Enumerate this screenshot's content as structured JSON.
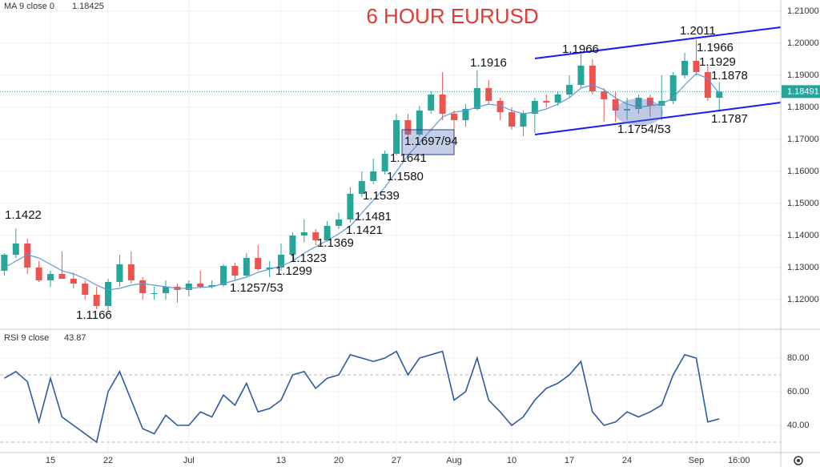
{
  "chart_data": [
    {
      "type": "candlestick",
      "title": "6 HOUR EURUSD",
      "title_color": "#e53935",
      "up_color": "#26a69a",
      "down_color": "#ef5350",
      "open": [
        1.129,
        1.134,
        1.1375,
        1.13,
        1.126,
        1.128,
        1.1265,
        1.125,
        1.1215,
        1.118,
        1.1255,
        1.131,
        1.126,
        1.122,
        1.122,
        1.124,
        1.123,
        1.125,
        1.124,
        1.1245,
        1.1305,
        1.1275,
        1.133,
        1.1295,
        1.13,
        1.134,
        1.14,
        1.141,
        1.1385,
        1.143,
        1.145,
        1.153,
        1.157,
        1.16,
        1.1655,
        1.176,
        1.1715,
        1.179,
        1.184,
        1.178,
        1.176,
        1.1795,
        1.186,
        1.182,
        1.1785,
        1.174,
        1.178,
        1.182,
        1.1815,
        1.184,
        1.187,
        1.193,
        1.185,
        1.1825,
        1.179,
        1.1795,
        1.183,
        1.1805,
        1.182,
        1.19,
        1.1945,
        1.191,
        1.183
      ],
      "high": [
        1.1345,
        1.1422,
        1.139,
        1.132,
        1.129,
        1.135,
        1.1285,
        1.126,
        1.124,
        1.1265,
        1.134,
        1.135,
        1.127,
        1.124,
        1.126,
        1.125,
        1.126,
        1.129,
        1.126,
        1.131,
        1.1315,
        1.1345,
        1.137,
        1.132,
        1.1375,
        1.141,
        1.145,
        1.142,
        1.1445,
        1.147,
        1.155,
        1.16,
        1.164,
        1.1665,
        1.178,
        1.178,
        1.1805,
        1.185,
        1.191,
        1.179,
        1.181,
        1.1916,
        1.1885,
        1.183,
        1.18,
        1.179,
        1.183,
        1.184,
        1.185,
        1.19,
        1.1966,
        1.195,
        1.186,
        1.185,
        1.183,
        1.184,
        1.184,
        1.19,
        1.191,
        1.197,
        1.2011,
        1.1929,
        1.1878
      ],
      "low": [
        1.1275,
        1.133,
        1.128,
        1.1255,
        1.124,
        1.1265,
        1.1235,
        1.12,
        1.117,
        1.1166,
        1.124,
        1.125,
        1.12,
        1.12,
        1.12,
        1.119,
        1.121,
        1.1235,
        1.1235,
        1.124,
        1.126,
        1.127,
        1.129,
        1.127,
        1.129,
        1.132,
        1.138,
        1.137,
        1.138,
        1.142,
        1.144,
        1.152,
        1.156,
        1.159,
        1.165,
        1.1697,
        1.171,
        1.178,
        1.176,
        1.17,
        1.174,
        1.179,
        1.181,
        1.176,
        1.173,
        1.171,
        1.172,
        1.18,
        1.1805,
        1.183,
        1.186,
        1.184,
        1.1755,
        1.1755,
        1.176,
        1.178,
        1.177,
        1.176,
        1.181,
        1.189,
        1.19,
        1.182,
        1.1787
      ],
      "close": [
        1.134,
        1.1375,
        1.13,
        1.126,
        1.128,
        1.1265,
        1.125,
        1.1215,
        1.118,
        1.1255,
        1.131,
        1.126,
        1.122,
        1.122,
        1.124,
        1.123,
        1.125,
        1.124,
        1.1245,
        1.1305,
        1.1275,
        1.133,
        1.1295,
        1.13,
        1.134,
        1.14,
        1.141,
        1.1385,
        1.143,
        1.145,
        1.153,
        1.157,
        1.16,
        1.1655,
        1.176,
        1.1715,
        1.179,
        1.184,
        1.178,
        1.176,
        1.1795,
        1.186,
        1.182,
        1.1785,
        1.174,
        1.178,
        1.182,
        1.1815,
        1.184,
        1.187,
        1.193,
        1.185,
        1.1825,
        1.179,
        1.1795,
        1.183,
        1.1805,
        1.182,
        1.19,
        1.1945,
        1.191,
        1.183,
        1.18491
      ],
      "series": [
        {
          "name": "MA 9 close 0",
          "color": "#5b9bd5",
          "values": [
            1.13,
            1.132,
            1.134,
            1.133,
            1.131,
            1.129,
            1.128,
            1.1265,
            1.1245,
            1.123,
            1.1235,
            1.1245,
            1.125,
            1.1245,
            1.124,
            1.1235,
            1.1235,
            1.1238,
            1.124,
            1.125,
            1.126,
            1.127,
            1.1285,
            1.1295,
            1.1305,
            1.132,
            1.1345,
            1.1365,
            1.1385,
            1.1405,
            1.143,
            1.147,
            1.151,
            1.155,
            1.16,
            1.165,
            1.169,
            1.173,
            1.177,
            1.1785,
            1.179,
            1.18,
            1.181,
            1.1805,
            1.179,
            1.178,
            1.1785,
            1.1795,
            1.181,
            1.183,
            1.186,
            1.187,
            1.1855,
            1.183,
            1.181,
            1.18,
            1.1805,
            1.181,
            1.183,
            1.187,
            1.1905,
            1.189,
            1.18425
          ]
        }
      ],
      "annotations": [
        "1.1422",
        "1.1166",
        "1.1257/53",
        "1.1299",
        "1.1323",
        "1.1369",
        "1.1421",
        "1.1481",
        "1.1539",
        "1.1580",
        "1.1641",
        "1.1697/94",
        "1.1916",
        "1.1966",
        "1.1754/53",
        "1.2011",
        "1.1966",
        "1.1929",
        "1.1878",
        "1.1787"
      ],
      "xlim": [
        -0.375,
        67.33
      ],
      "ylim": [
        1.111,
        1.2135
      ],
      "yticks": [
        {
          "value": 1.12,
          "label": "1.12000"
        },
        {
          "value": 1.13,
          "label": "1.13000"
        },
        {
          "value": 1.14,
          "label": "1.14000"
        },
        {
          "value": 1.15,
          "label": "1.15000"
        },
        {
          "value": 1.16,
          "label": "1.16000"
        },
        {
          "value": 1.17,
          "label": "1.17000"
        },
        {
          "value": 1.18,
          "label": "1.18000"
        },
        {
          "value": 1.19,
          "label": "1.19000"
        },
        {
          "value": 1.2,
          "label": "1.20000"
        },
        {
          "value": 1.21,
          "label": "1.21000"
        }
      ],
      "grid": true
    },
    {
      "type": "line",
      "series": [
        {
          "name": "RSI 9 close",
          "color": "#2c5aa0",
          "values": [
            68,
            72,
            66,
            42,
            68,
            45,
            40,
            35,
            30,
            60,
            72,
            55,
            38,
            35,
            46,
            40,
            40,
            48,
            45,
            58,
            52,
            65,
            48,
            50,
            55,
            70,
            72,
            62,
            68,
            70,
            82,
            80,
            78,
            80,
            84,
            70,
            80,
            82,
            84,
            55,
            60,
            80,
            55,
            48,
            40,
            45,
            55,
            62,
            65,
            70,
            78,
            48,
            40,
            42,
            48,
            45,
            48,
            52,
            70,
            82,
            80,
            42,
            43.87
          ]
        }
      ],
      "band_lines": [
        30,
        70
      ],
      "xlim": [
        -0.375,
        67.33
      ],
      "ylim": [
        23.8,
        96.2
      ],
      "yticks": [
        {
          "value": 40,
          "label": "40.00"
        },
        {
          "value": 60,
          "label": "60.00"
        },
        {
          "value": 80,
          "label": "80.00"
        }
      ],
      "xticks": [
        {
          "value": 4,
          "label": "15"
        },
        {
          "value": 9,
          "label": "22"
        },
        {
          "value": 16,
          "label": "Jul"
        },
        {
          "value": 24,
          "label": "13"
        },
        {
          "value": 29,
          "label": "20"
        },
        {
          "value": 34,
          "label": "27"
        },
        {
          "value": 39,
          "label": "Aug"
        },
        {
          "value": 44,
          "label": "10"
        },
        {
          "value": 49,
          "label": "17"
        },
        {
          "value": 54,
          "label": "24"
        },
        {
          "value": 60,
          "label": "Sep"
        },
        {
          "value": 63.7,
          "label": "16:00"
        }
      ],
      "grid": true
    }
  ]
}
